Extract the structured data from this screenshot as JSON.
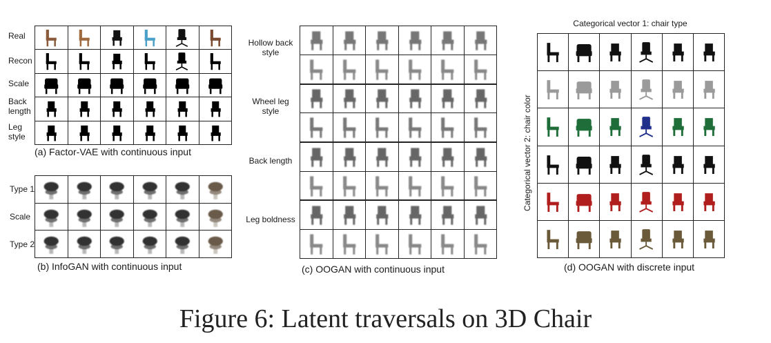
{
  "figure_caption": "Figure 6: Latent traversals on 3D Chair",
  "panels": {
    "a": {
      "caption": "(a) Factor-VAE with continuous input",
      "rows": [
        "Real",
        "Recon",
        "Scale",
        "Back length",
        "Leg style"
      ],
      "columns": 6
    },
    "b": {
      "caption": "(b) InfoGAN with continuous input",
      "rows": [
        "Type 1",
        "Scale",
        "Type 2"
      ],
      "columns": 6
    },
    "c": {
      "caption": "(c) OOGAN with continuous input",
      "groups": [
        "Hollow back style",
        "Wheel leg style",
        "Back length",
        "Leg boldness"
      ],
      "rows_per_group": 2,
      "columns": 6
    },
    "d": {
      "caption": "(d) OOGAN with discrete input",
      "top_label": "Categorical vector 1: chair type",
      "side_label": "Categorical vector 2: chair color",
      "rows": 6,
      "columns": 6,
      "row_colors": [
        "#111111",
        "#9a9a9a",
        "#1f6e3a",
        "#111111",
        "#b01e1e",
        "#6b5a3a"
      ],
      "accent_colors": {
        "row3_col4": "#1f2f8a"
      }
    }
  }
}
